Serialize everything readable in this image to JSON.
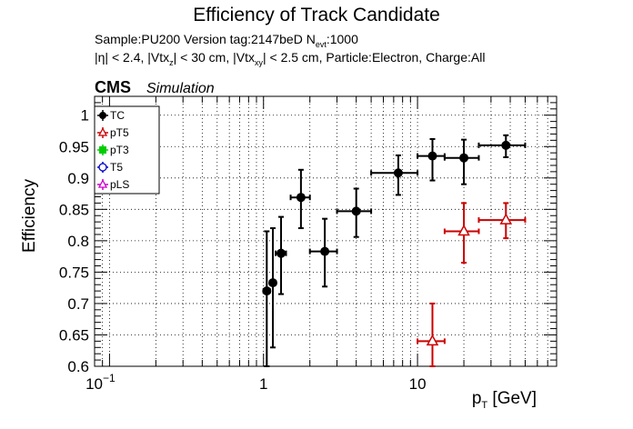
{
  "colors": {
    "TC": "#000000",
    "pT5": "#cc0000",
    "pT3": "#00cc00",
    "T5": "#0000cc",
    "pLS": "#cc00cc"
  },
  "header": {
    "title": "Efficiency of Track Candidate",
    "sample_line": {
      "part1": "Sample:PU200   Version tag:2147beD  N",
      "sub": "evt",
      "part2": ":1000"
    },
    "cuts_line": {
      "p1": "|η| < 2.4, |Vtx",
      "s1": "z",
      "p2": "| < 30 cm, |Vtx",
      "s2": "xy",
      "p3": "| < 2.5 cm, Particle:Electron, Charge:All"
    },
    "cms": "CMS",
    "simulation": "Simulation"
  },
  "chart_data": {
    "type": "scatter",
    "title": "Efficiency of Track Candidate",
    "xlabel": "p_T [GeV]",
    "ylabel": "Efficiency",
    "x_scale": "log",
    "xlim": [
      0.08,
      80
    ],
    "ylim": [
      0.6,
      1.03
    ],
    "grid": true,
    "legend_position": "top-left",
    "x_ticks": [
      {
        "value": 0.1,
        "base": "10",
        "exp": "−1"
      },
      {
        "value": 1,
        "label": "1"
      },
      {
        "value": 10,
        "label": "10"
      }
    ],
    "y_ticks": [
      "0.6",
      "0.65",
      "0.7",
      "0.75",
      "0.8",
      "0.85",
      "0.9",
      "0.95",
      "1"
    ],
    "legend": [
      "TC",
      "pT5",
      "pT3",
      "T5",
      "pLS"
    ],
    "series": [
      {
        "name": "TC",
        "marker": "filled-circle",
        "points": [
          {
            "x": 1.05,
            "xlo": 1.0,
            "xhi": 1.1,
            "y": 0.72,
            "ylo": 0.6,
            "yhi": 0.815
          },
          {
            "x": 1.15,
            "xlo": 1.1,
            "xhi": 1.2,
            "y": 0.733,
            "ylo": 0.63,
            "yhi": 0.82
          },
          {
            "x": 1.3,
            "xlo": 1.2,
            "xhi": 1.4,
            "y": 0.78,
            "ylo": 0.715,
            "yhi": 0.838
          },
          {
            "x": 1.75,
            "xlo": 1.5,
            "xhi": 2.0,
            "y": 0.869,
            "ylo": 0.82,
            "yhi": 0.913
          },
          {
            "x": 2.5,
            "xlo": 2.0,
            "xhi": 3.0,
            "y": 0.783,
            "ylo": 0.727,
            "yhi": 0.835
          },
          {
            "x": 4.0,
            "xlo": 3.0,
            "xhi": 5.0,
            "y": 0.847,
            "ylo": 0.806,
            "yhi": 0.883
          },
          {
            "x": 7.5,
            "xlo": 5.0,
            "xhi": 10.0,
            "y": 0.908,
            "ylo": 0.873,
            "yhi": 0.936
          },
          {
            "x": 12.5,
            "xlo": 10.0,
            "xhi": 15.0,
            "y": 0.935,
            "ylo": 0.896,
            "yhi": 0.962
          },
          {
            "x": 20.0,
            "xlo": 15.0,
            "xhi": 25.0,
            "y": 0.932,
            "ylo": 0.89,
            "yhi": 0.961
          },
          {
            "x": 37.5,
            "xlo": 25.0,
            "xhi": 50.0,
            "y": 0.952,
            "ylo": 0.933,
            "yhi": 0.968
          }
        ]
      },
      {
        "name": "pT5",
        "marker": "open-triangle",
        "points": [
          {
            "x": 12.5,
            "xlo": 10.0,
            "xhi": 15.0,
            "y": 0.64,
            "ylo": 0.6,
            "yhi": 0.7
          },
          {
            "x": 20.0,
            "xlo": 15.0,
            "xhi": 25.0,
            "y": 0.815,
            "ylo": 0.765,
            "yhi": 0.86
          },
          {
            "x": 37.5,
            "xlo": 25.0,
            "xhi": 50.0,
            "y": 0.833,
            "ylo": 0.804,
            "yhi": 0.86
          }
        ]
      }
    ]
  }
}
